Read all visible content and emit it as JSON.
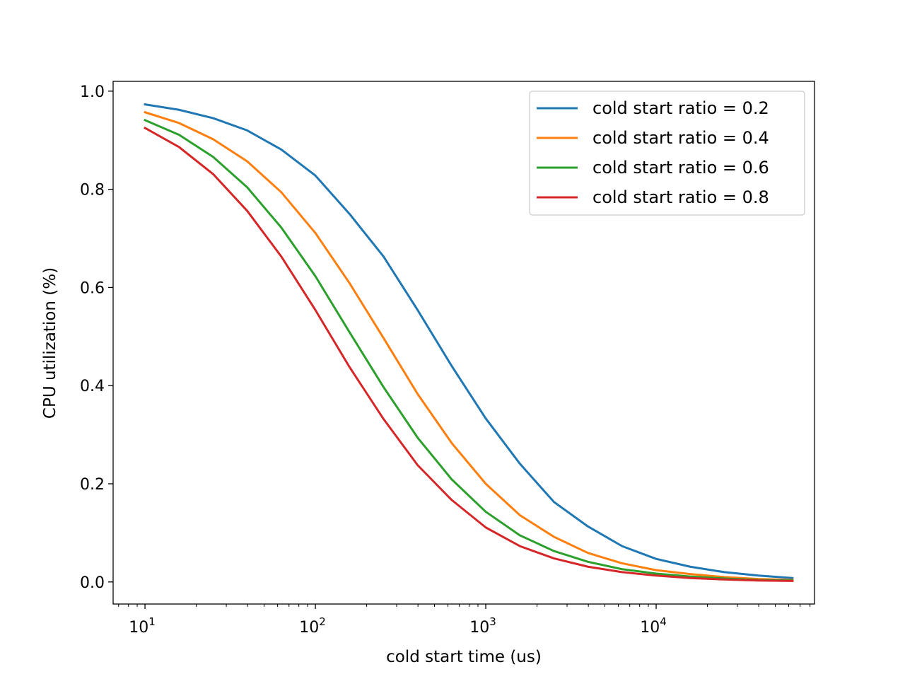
{
  "chart_data": {
    "type": "line",
    "title": "",
    "xlabel": "cold start time (us)",
    "ylabel": "CPU utilization (%)",
    "x_scale": "log",
    "xlim": [
      6.5,
      85000
    ],
    "ylim": [
      -0.045,
      1.02
    ],
    "grid": false,
    "legend_position": "top-right",
    "x_ticks": [
      {
        "value": 10,
        "base": "10",
        "exp": "1"
      },
      {
        "value": 100,
        "base": "10",
        "exp": "2"
      },
      {
        "value": 1000,
        "base": "10",
        "exp": "3"
      },
      {
        "value": 10000,
        "base": "10",
        "exp": "4"
      }
    ],
    "y_ticks": [
      {
        "value": 0.0,
        "label": "0.0"
      },
      {
        "value": 0.2,
        "label": "0.2"
      },
      {
        "value": 0.4,
        "label": "0.4"
      },
      {
        "value": 0.6,
        "label": "0.6"
      },
      {
        "value": 0.8,
        "label": "0.8"
      },
      {
        "value": 1.0,
        "label": "1.0"
      }
    ],
    "x": [
      10,
      15.85,
      25.12,
      39.81,
      63.1,
      100,
      158.5,
      251.2,
      398.1,
      631,
      1000,
      1585,
      2512,
      3981,
      6310,
      10000,
      15850,
      25120,
      39810,
      63100
    ],
    "series": [
      {
        "name": "cold start ratio = 0.2",
        "color": "#1f77b4",
        "values": [
          0.973,
          0.962,
          0.945,
          0.92,
          0.881,
          0.828,
          0.75,
          0.663,
          0.554,
          0.44,
          0.333,
          0.241,
          0.163,
          0.113,
          0.073,
          0.047,
          0.031,
          0.02,
          0.013,
          0.008
        ]
      },
      {
        "name": "cold start ratio = 0.4",
        "color": "#ff7f0e",
        "values": [
          0.957,
          0.935,
          0.902,
          0.857,
          0.794,
          0.711,
          0.609,
          0.497,
          0.383,
          0.283,
          0.2,
          0.136,
          0.092,
          0.059,
          0.038,
          0.024,
          0.016,
          0.01,
          0.006,
          0.004
        ]
      },
      {
        "name": "cold start ratio = 0.6",
        "color": "#2ca02c",
        "values": [
          0.941,
          0.911,
          0.866,
          0.804,
          0.722,
          0.623,
          0.509,
          0.397,
          0.294,
          0.209,
          0.143,
          0.095,
          0.063,
          0.041,
          0.026,
          0.017,
          0.011,
          0.007,
          0.004,
          0.003
        ]
      },
      {
        "name": "cold start ratio = 0.8",
        "color": "#d62728",
        "values": [
          0.925,
          0.886,
          0.831,
          0.756,
          0.663,
          0.554,
          0.438,
          0.332,
          0.238,
          0.167,
          0.111,
          0.073,
          0.048,
          0.031,
          0.02,
          0.013,
          0.008,
          0.005,
          0.003,
          0.002
        ]
      }
    ]
  }
}
